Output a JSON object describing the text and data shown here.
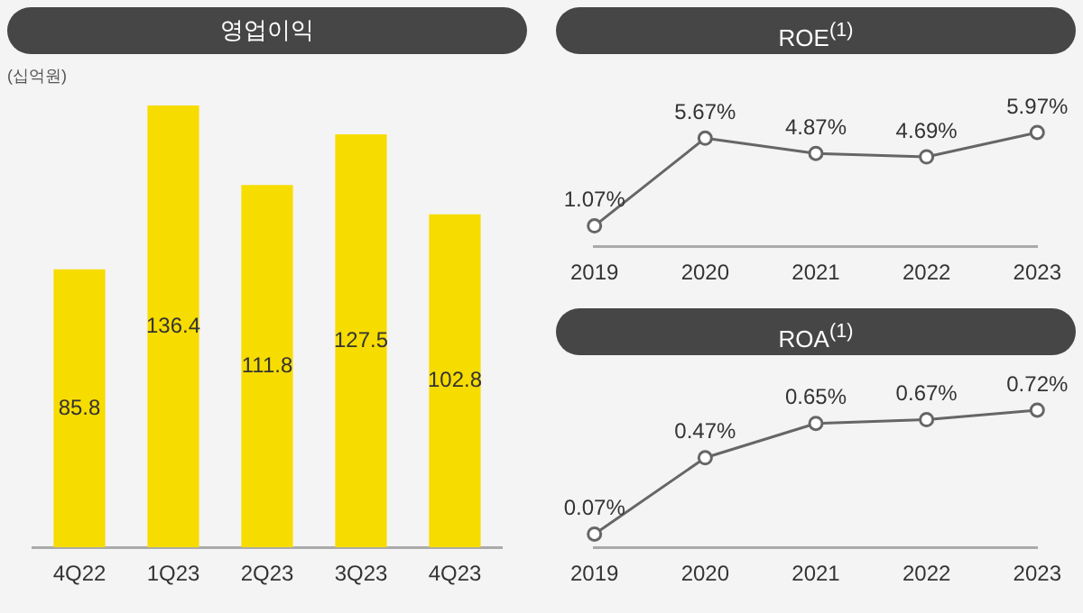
{
  "chart_data": [
    {
      "type": "bar",
      "title": "영업이익",
      "ylabel": "(십억원)",
      "categories": [
        "4Q22",
        "1Q23",
        "2Q23",
        "3Q23",
        "4Q23"
      ],
      "values": [
        85.8,
        136.4,
        111.8,
        127.5,
        102.8
      ],
      "color": "#f7dc00",
      "data_labels": true,
      "grid": false,
      "legend": false,
      "tick_labels": "x"
    },
    {
      "type": "line",
      "title": "ROE$^{(1)}$",
      "categories": [
        "2019",
        "2020",
        "2021",
        "2022",
        "2023"
      ],
      "values": [
        1.07,
        5.67,
        4.87,
        4.69,
        5.97
      ],
      "value_labels": [
        "1.07%",
        "5.67%",
        "4.87%",
        "4.69%",
        "5.97%"
      ],
      "color": "#666666",
      "marker": "circle",
      "grid": false,
      "legend": false,
      "tick_labels": "x"
    },
    {
      "type": "line",
      "title": "ROA$^{(1)}$",
      "categories": [
        "2019",
        "2020",
        "2021",
        "2022",
        "2023"
      ],
      "values": [
        0.07,
        0.47,
        0.65,
        0.67,
        0.72
      ],
      "value_labels": [
        "0.07%",
        "0.47%",
        "0.65%",
        "0.67%",
        "0.72%"
      ],
      "color": "#666666",
      "marker": "circle",
      "grid": false,
      "legend": false,
      "tick_labels": "x"
    }
  ]
}
